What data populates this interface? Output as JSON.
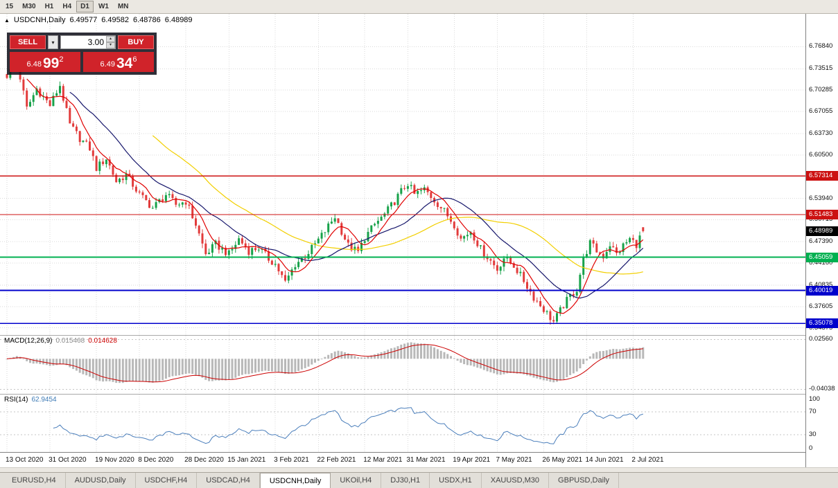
{
  "toolbar": {
    "periods": [
      "15",
      "M30",
      "H1",
      "H4",
      "D1",
      "W1",
      "MN"
    ],
    "active": "D1"
  },
  "chart_header": {
    "symbol": "USDCNH,Daily",
    "open": "6.49577",
    "high": "6.49582",
    "low": "6.48786",
    "close": "6.48989"
  },
  "trade_panel": {
    "sell_label": "SELL",
    "buy_label": "BUY",
    "volume": "3.00",
    "sell_price": {
      "small": "6.48",
      "big": "99",
      "sup": "2"
    },
    "buy_price": {
      "small": "6.49",
      "big": "34",
      "sup": "6"
    }
  },
  "price_axis": {
    "ticks": [
      "6.76840",
      "6.73515",
      "6.70285",
      "6.67055",
      "6.63730",
      "6.60500",
      "6.53940",
      "6.50715",
      "6.47390",
      "6.44160",
      "6.40835",
      "6.37605",
      "6.34375"
    ],
    "tags": [
      {
        "label": "6.57314",
        "price": 6.57314,
        "color": "#cc1111"
      },
      {
        "label": "6.51483",
        "price": 6.51483,
        "color": "#cc1111"
      },
      {
        "label": "6.48989",
        "price": 6.48989,
        "color": "#000000"
      },
      {
        "label": "6.45059",
        "price": 6.45059,
        "color": "#00b050"
      },
      {
        "label": "6.40019",
        "price": 6.40019,
        "color": "#0000cc"
      },
      {
        "label": "6.35078",
        "price": 6.35078,
        "color": "#0000cc"
      }
    ]
  },
  "hlines": [
    {
      "price": 6.57314,
      "color": "#cc1111",
      "width": 1.2
    },
    {
      "price": 6.51483,
      "color": "#cc1111",
      "width": 1.2
    },
    {
      "price": 6.45059,
      "color": "#00b050",
      "width": 2
    },
    {
      "price": 6.40019,
      "color": "#0000cc",
      "width": 2
    },
    {
      "price": 6.35078,
      "color": "#0000cc",
      "width": 1.5
    }
  ],
  "macd": {
    "label": "MACD(12,26,9)",
    "value_main": "0.015468",
    "value_signal": "0.014628",
    "axis": [
      "0.02560",
      "-0.04038"
    ],
    "ylim": [
      -0.0465,
      0.0305
    ],
    "histogram_color": "#b8b8b8",
    "signal_color": "#cc0000"
  },
  "rsi": {
    "label": "RSI(14)",
    "value": "62.9454",
    "axis": [
      "100",
      "70",
      "30",
      "0"
    ],
    "levels": [
      70,
      30
    ],
    "line_color": "#4a7ebb"
  },
  "time_axis": {
    "labels": [
      {
        "text": "13 Oct 2020",
        "idx": 0
      },
      {
        "text": "31 Oct 2020",
        "idx": 13
      },
      {
        "text": "19 Nov 2020",
        "idx": 27
      },
      {
        "text": "8 Dec 2020",
        "idx": 40
      },
      {
        "text": "28 Dec 2020",
        "idx": 54
      },
      {
        "text": "15 Jan 2021",
        "idx": 67
      },
      {
        "text": "3 Feb 2021",
        "idx": 81
      },
      {
        "text": "22 Feb 2021",
        "idx": 94
      },
      {
        "text": "12 Mar 2021",
        "idx": 108
      },
      {
        "text": "31 Mar 2021",
        "idx": 121
      },
      {
        "text": "19 Apr 2021",
        "idx": 135
      },
      {
        "text": "7 May 2021",
        "idx": 148
      },
      {
        "text": "26 May 2021",
        "idx": 162
      },
      {
        "text": "14 Jun 2021",
        "idx": 175
      },
      {
        "text": "2 Jul 2021",
        "idx": 189
      }
    ]
  },
  "tabs": {
    "items": [
      "EURUSD,H4",
      "AUDUSD,Daily",
      "USDCHF,H4",
      "USDCAD,H4",
      "USDCNH,Daily",
      "UKOil,H4",
      "DJ30,H1",
      "USDX,H1",
      "XAUUSD,M30",
      "GBPUSD,Daily"
    ],
    "active": "USDCNH,Daily"
  },
  "chart_data": {
    "type": "candlestick",
    "symbol": "USDCNH",
    "timeframe": "Daily",
    "ylim": [
      6.333,
      6.818
    ],
    "candle_count": 193,
    "last": {
      "open": 6.49577,
      "high": 6.49582,
      "low": 6.48786,
      "close": 6.48989
    },
    "close_anchors": [
      [
        0,
        6.725
      ],
      [
        3,
        6.745
      ],
      [
        6,
        6.675
      ],
      [
        9,
        6.705
      ],
      [
        13,
        6.68
      ],
      [
        16,
        6.71
      ],
      [
        19,
        6.65
      ],
      [
        22,
        6.63
      ],
      [
        25,
        6.615
      ],
      [
        27,
        6.585
      ],
      [
        30,
        6.6
      ],
      [
        33,
        6.565
      ],
      [
        36,
        6.575
      ],
      [
        40,
        6.545
      ],
      [
        44,
        6.525
      ],
      [
        48,
        6.545
      ],
      [
        51,
        6.53
      ],
      [
        54,
        6.535
      ],
      [
        57,
        6.5
      ],
      [
        60,
        6.455
      ],
      [
        63,
        6.47
      ],
      [
        67,
        6.455
      ],
      [
        70,
        6.478
      ],
      [
        73,
        6.46
      ],
      [
        76,
        6.465
      ],
      [
        79,
        6.448
      ],
      [
        81,
        6.44
      ],
      [
        84,
        6.412
      ],
      [
        87,
        6.44
      ],
      [
        90,
        6.452
      ],
      [
        93,
        6.47
      ],
      [
        96,
        6.49
      ],
      [
        99,
        6.512
      ],
      [
        101,
        6.49
      ],
      [
        103,
        6.468
      ],
      [
        106,
        6.458
      ],
      [
        108,
        6.48
      ],
      [
        111,
        6.5
      ],
      [
        114,
        6.515
      ],
      [
        117,
        6.535
      ],
      [
        119,
        6.55
      ],
      [
        121,
        6.562
      ],
      [
        123,
        6.545
      ],
      [
        126,
        6.553
      ],
      [
        129,
        6.537
      ],
      [
        132,
        6.52
      ],
      [
        135,
        6.5
      ],
      [
        137,
        6.478
      ],
      [
        140,
        6.49
      ],
      [
        143,
        6.463
      ],
      [
        146,
        6.445
      ],
      [
        148,
        6.432
      ],
      [
        150,
        6.45
      ],
      [
        153,
        6.438
      ],
      [
        156,
        6.415
      ],
      [
        159,
        6.39
      ],
      [
        162,
        6.372
      ],
      [
        165,
        6.353
      ],
      [
        168,
        6.378
      ],
      [
        170,
        6.392
      ],
      [
        172,
        6.402
      ],
      [
        174,
        6.448
      ],
      [
        176,
        6.472
      ],
      [
        178,
        6.46
      ],
      [
        180,
        6.452
      ],
      [
        182,
        6.47
      ],
      [
        184,
        6.455
      ],
      [
        186,
        6.468
      ],
      [
        188,
        6.478
      ],
      [
        190,
        6.47
      ],
      [
        192,
        6.48989
      ]
    ],
    "ma": [
      {
        "period": 45,
        "color": "#f2cf00"
      },
      {
        "period": 20,
        "color": "#16166b"
      },
      {
        "period": 7,
        "color": "#e00000"
      }
    ],
    "colors": {
      "up": "#17a24a",
      "down": "#e23b3b"
    }
  }
}
